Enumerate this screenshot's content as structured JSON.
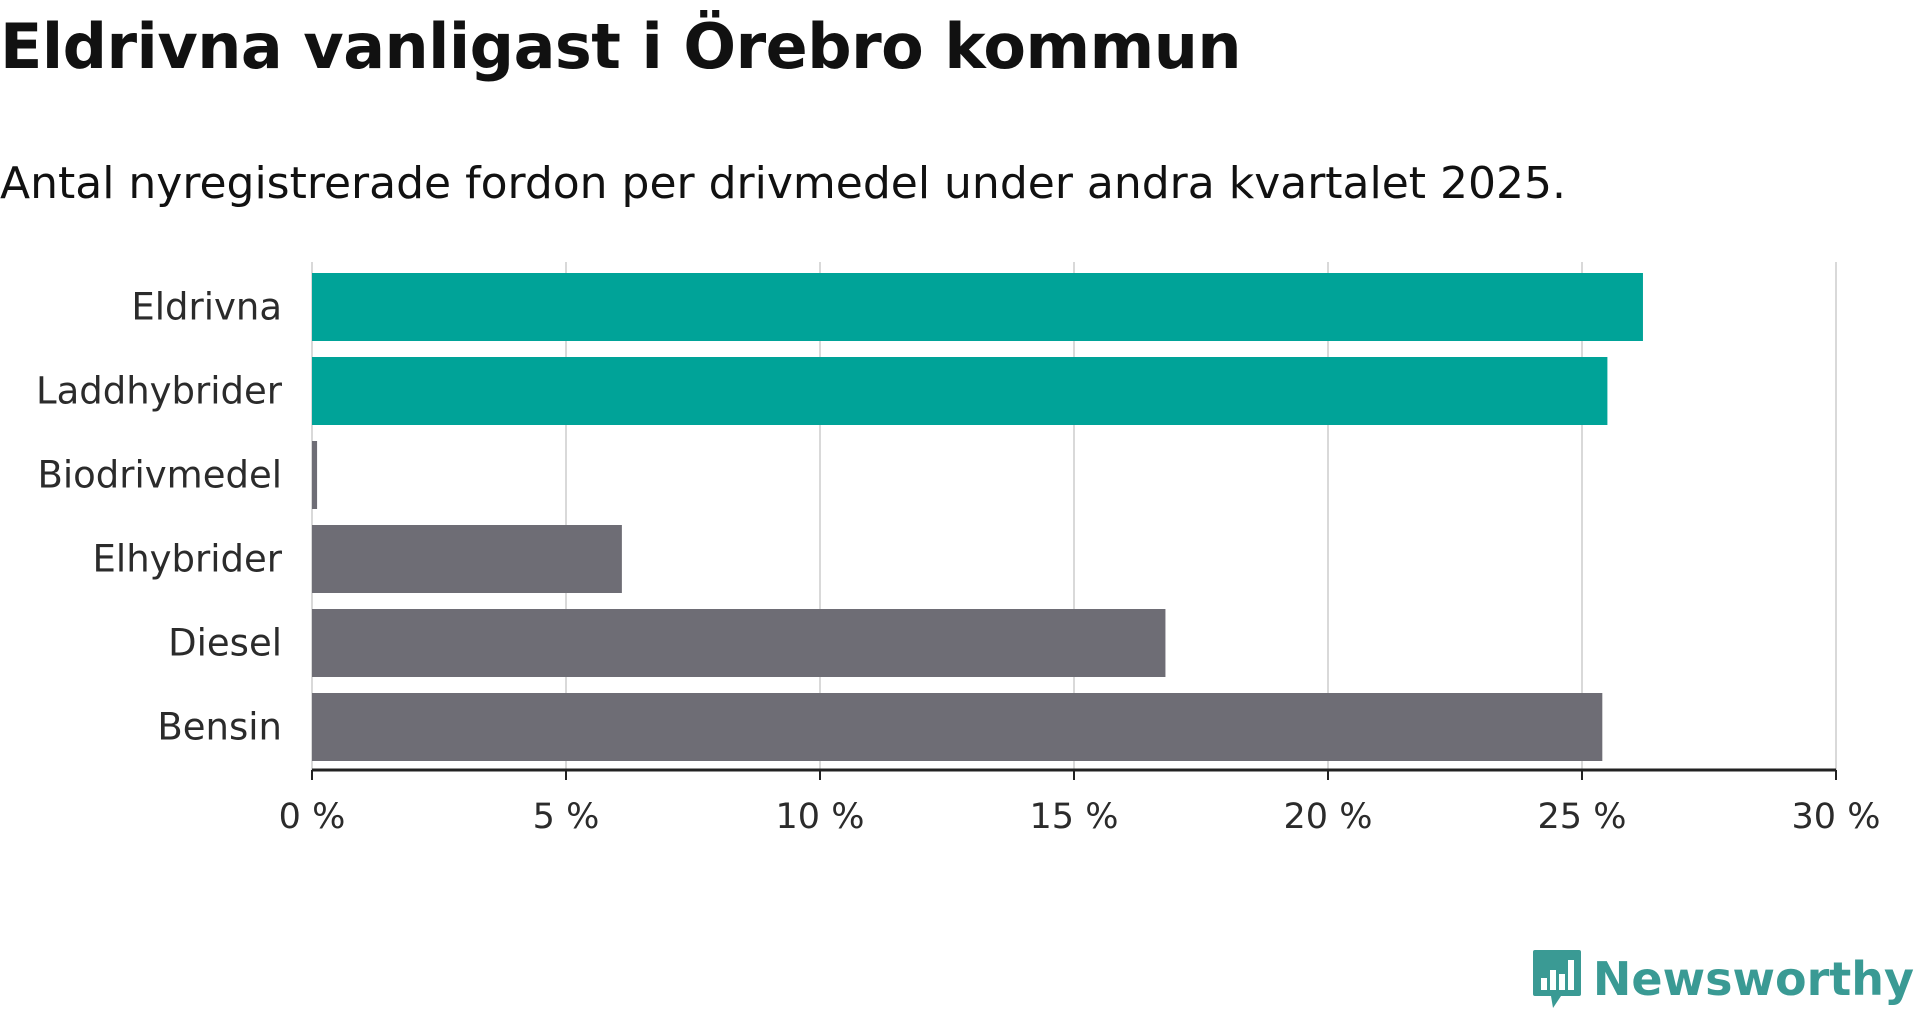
{
  "chart_data": {
    "type": "bar",
    "orientation": "horizontal",
    "title": "Eldrivna vanligast i Örebro kommun",
    "subtitle": "Antal nyregistrerade fordon per drivmedel under andra kvartalet 2025.",
    "categories": [
      "Eldrivna",
      "Laddhybrider",
      "Biodrivmedel",
      "Elhybrider",
      "Diesel",
      "Bensin"
    ],
    "values": [
      26.2,
      25.5,
      0.1,
      6.1,
      16.8,
      25.4
    ],
    "highlighted": [
      true,
      true,
      false,
      false,
      false,
      false
    ],
    "xlim": [
      0,
      30
    ],
    "xticks": [
      0,
      5,
      10,
      15,
      20,
      25,
      30
    ],
    "xtick_labels": [
      "0 %",
      "5 %",
      "10 %",
      "15 %",
      "20 %",
      "25 %",
      "30 %"
    ],
    "xlabel": "",
    "ylabel": "",
    "grid": "vertical",
    "legend": "none",
    "colors": {
      "highlight": "#00a398",
      "default": "#6e6d75",
      "grid": "#d9d9d9",
      "axis": "#222222"
    }
  },
  "brand": {
    "name": "Newsworthy",
    "color": "#3a9a94",
    "icon": "bar-chart-logo-icon"
  }
}
